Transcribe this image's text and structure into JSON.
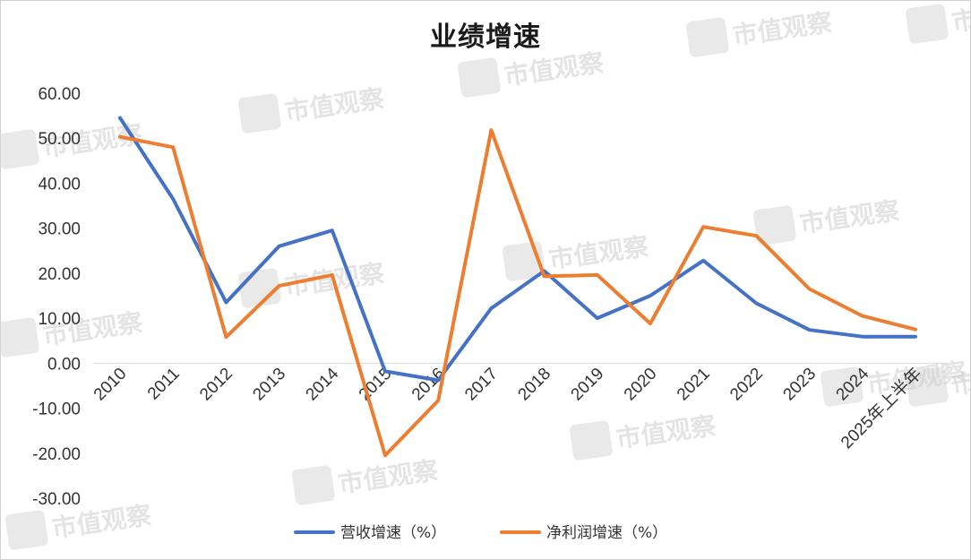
{
  "chart_data": {
    "type": "line",
    "title": "业绩增速",
    "categories": [
      "2010",
      "2011",
      "2012",
      "2013",
      "2014",
      "2015",
      "2016",
      "2017",
      "2018",
      "2019",
      "2020",
      "2021",
      "2022",
      "2023",
      "2024",
      "2025年上半年"
    ],
    "series": [
      {
        "name": "营收增速（%）",
        "color": "#4472c4",
        "values": [
          54.5,
          36.5,
          13.5,
          26.0,
          29.5,
          -1.8,
          -3.8,
          12.2,
          20.5,
          10.0,
          15.0,
          22.8,
          13.3,
          7.4,
          5.9,
          5.9
        ]
      },
      {
        "name": "净利润增速（%）",
        "color": "#ed7d31",
        "values": [
          50.3,
          48.0,
          5.8,
          17.2,
          19.6,
          -20.5,
          -8.3,
          51.8,
          19.3,
          19.6,
          8.8,
          30.3,
          28.3,
          16.5,
          10.5,
          7.5
        ]
      }
    ],
    "y_ticks": [
      "60.00",
      "50.00",
      "40.00",
      "30.00",
      "20.00",
      "10.00",
      "0.00",
      "-10.00",
      "-20.00",
      "-30.00"
    ],
    "ylim": [
      -30,
      60
    ],
    "grid": false,
    "legend_position": "bottom"
  },
  "watermark": {
    "text": "市值观察"
  }
}
